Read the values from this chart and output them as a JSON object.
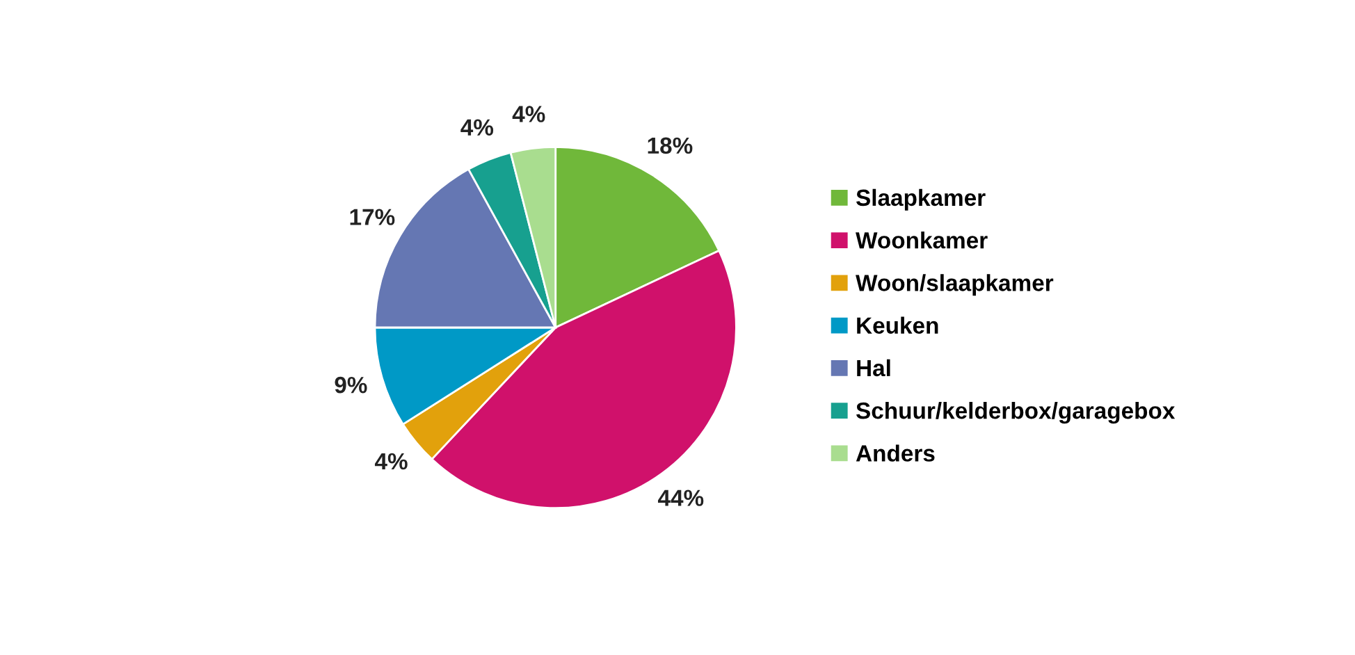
{
  "chart_data": {
    "type": "pie",
    "categories": [
      "Slaapkamer",
      "Woonkamer",
      "Woon/slaapkamer",
      "Keuken",
      "Hal",
      "Schuur/kelderbox/garagebox",
      "Anders"
    ],
    "values": [
      18,
      44,
      4,
      9,
      17,
      4,
      4
    ],
    "colors": [
      "#70b83a",
      "#d0116b",
      "#e2a10c",
      "#0099c6",
      "#6577b3",
      "#17a08f",
      "#a9dd8f"
    ],
    "value_labels": [
      "18%",
      "44%",
      "4%",
      "9%",
      "17%",
      "4%",
      "4%"
    ],
    "legend": "right"
  }
}
